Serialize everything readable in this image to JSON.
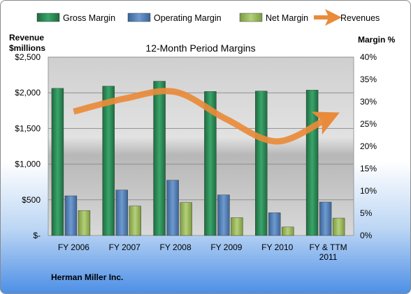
{
  "chart_data": {
    "type": "bar",
    "title": "12-Month Period Margins",
    "categories": [
      [
        "FY 2006"
      ],
      [
        "FY 2007"
      ],
      [
        "FY 2008"
      ],
      [
        "FY 2009"
      ],
      [
        "FY 2010"
      ],
      [
        "FY & TTM",
        "2011"
      ]
    ],
    "ylabel_left": [
      "Revenue",
      "$millions"
    ],
    "ylabel_right": "Margin %",
    "ylim_left": [
      0,
      2500
    ],
    "ylim_right": [
      0,
      40
    ],
    "left_ticks": [
      "$-",
      "$500",
      "$1,000",
      "$1,500",
      "$2,000",
      "$2,500"
    ],
    "right_ticks": [
      "0%",
      "5%",
      "10%",
      "15%",
      "20%",
      "25%",
      "30%",
      "35%",
      "40%"
    ],
    "series": [
      {
        "name": "Gross Margin",
        "kind": "bar",
        "axis": "right",
        "color": "#2e8b57",
        "values": [
          33.0,
          33.5,
          34.6,
          32.3,
          32.4,
          32.6
        ]
      },
      {
        "name": "Operating Margin",
        "kind": "bar",
        "axis": "right",
        "color": "#4f81bd",
        "values": [
          8.9,
          10.2,
          12.4,
          9.1,
          5.1,
          7.5
        ]
      },
      {
        "name": "Net Margin",
        "kind": "bar",
        "axis": "right",
        "color": "#9bbb59",
        "values": [
          5.6,
          6.6,
          7.4,
          4.0,
          1.9,
          3.9
        ]
      },
      {
        "name": "Revenues",
        "kind": "line",
        "axis": "left",
        "color": "#e98b3a",
        "values": [
          1737,
          1919,
          2012,
          1630,
          1318,
          1649
        ]
      }
    ],
    "company": "Herman Miller Inc.",
    "grid": true,
    "legend_position": "top"
  }
}
